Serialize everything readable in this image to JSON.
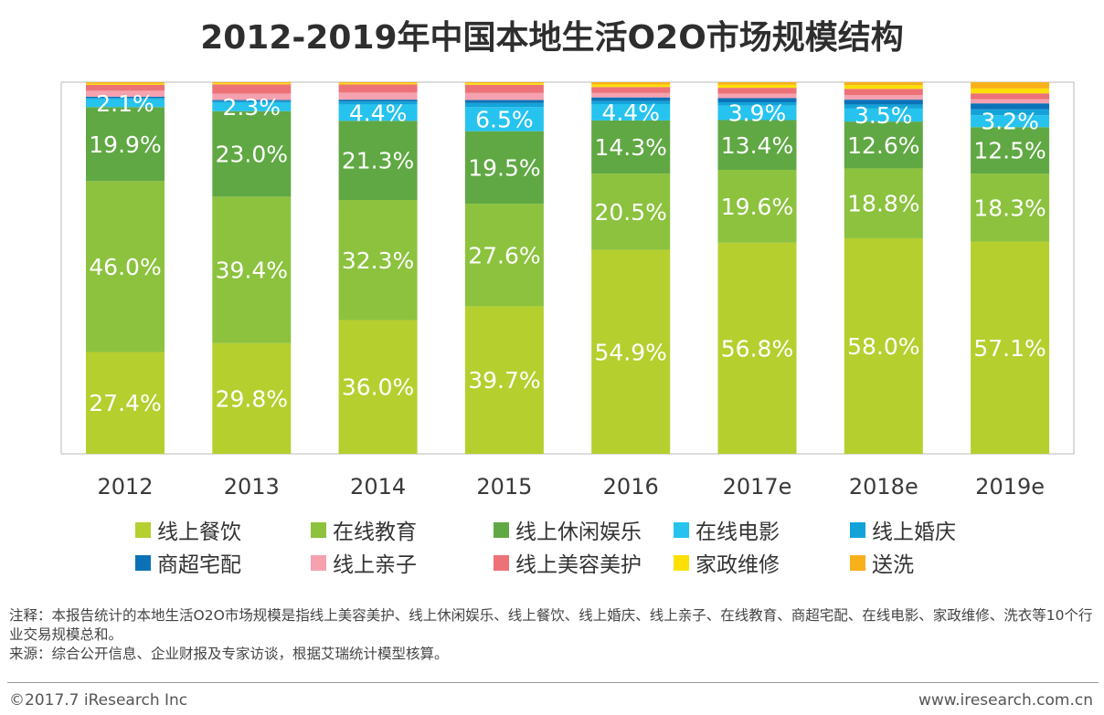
{
  "title": "2012-2019年中国本地生活O2O市场规模结构",
  "chart_data": {
    "type": "bar",
    "stacked": true,
    "normalized_percent": true,
    "categories": [
      "2012",
      "2013",
      "2014",
      "2015",
      "2016",
      "2017e",
      "2018e",
      "2019e"
    ],
    "ylim": [
      0,
      100
    ],
    "grid": false,
    "legend_position": "bottom",
    "series": [
      {
        "name": "线上餐饮",
        "color": "#b5cf2f",
        "values": [
          27.4,
          29.8,
          36.0,
          39.7,
          54.9,
          56.8,
          58.0,
          57.1
        ],
        "labels": [
          "27.4%",
          "29.8%",
          "36.0%",
          "39.7%",
          "54.9%",
          "56.8%",
          "58.0%",
          "57.1%"
        ]
      },
      {
        "name": "在线教育",
        "color": "#8cc23e",
        "values": [
          46.0,
          39.4,
          32.3,
          27.6,
          20.5,
          19.6,
          18.8,
          18.3
        ],
        "labels": [
          "46.0%",
          "39.4%",
          "32.3%",
          "27.6%",
          "20.5%",
          "19.6%",
          "18.8%",
          "18.3%"
        ]
      },
      {
        "name": "线上休闲娱乐",
        "color": "#60a843",
        "values": [
          19.9,
          23.0,
          21.3,
          19.5,
          14.3,
          13.4,
          12.6,
          12.5
        ],
        "labels": [
          "19.9%",
          "23.0%",
          "21.3%",
          "19.5%",
          "14.3%",
          "13.4%",
          "12.6%",
          "12.5%"
        ]
      },
      {
        "name": "在线电影",
        "color": "#26c3ee",
        "values": [
          2.1,
          2.3,
          4.4,
          6.5,
          4.4,
          3.9,
          3.5,
          3.2
        ],
        "labels": [
          "2.1%",
          "2.3%",
          "4.4%",
          "6.5%",
          "4.4%",
          "3.9%",
          "3.5%",
          "3.2%"
        ]
      },
      {
        "name": "线上婚庆",
        "color": "#13a3d9",
        "values": [
          0.4,
          0.4,
          0.8,
          1.1,
          0.8,
          0.9,
          1.1,
          1.6
        ]
      },
      {
        "name": "商超宅配",
        "color": "#0c72b8",
        "values": [
          0.3,
          0.3,
          0.5,
          0.8,
          1.0,
          1.1,
          1.3,
          1.6
        ]
      },
      {
        "name": "线上亲子",
        "color": "#f5a1b0",
        "values": [
          1.6,
          1.7,
          1.9,
          1.9,
          1.2,
          1.2,
          1.2,
          1.1
        ]
      },
      {
        "name": "线上美容美护",
        "color": "#ec7277",
        "values": [
          1.6,
          2.5,
          2.2,
          2.2,
          1.6,
          1.6,
          1.7,
          1.6
        ]
      },
      {
        "name": "家政维修",
        "color": "#fde006",
        "values": [
          0.3,
          0.3,
          0.3,
          0.4,
          0.7,
          0.8,
          1.0,
          1.3
        ]
      },
      {
        "name": "送洗",
        "color": "#f8b01b",
        "values": [
          0.4,
          0.3,
          0.3,
          0.3,
          0.6,
          0.7,
          0.8,
          1.7
        ]
      }
    ]
  },
  "notes": {
    "line1": "注释：本报告统计的本地生活O2O市场规模是指线上美容美护、线上休闲娱乐、线上餐饮、线上婚庆、线上亲子、在线教育、商超宅配、在线电影、家政维修、洗衣等10个行业交易规模总和。",
    "line2": "来源：综合公开信息、企业财报及专家访谈，根据艾瑞统计模型核算。"
  },
  "footer": {
    "copyright": "©2017.7 iResearch Inc",
    "website": "www.iresearch.com.cn"
  }
}
